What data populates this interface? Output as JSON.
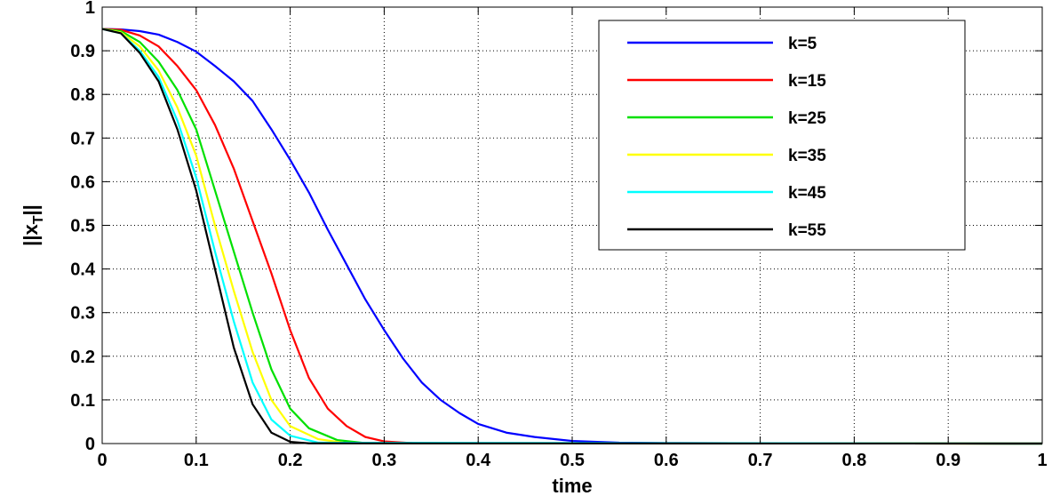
{
  "chart_data": {
    "type": "line",
    "title": "",
    "xlabel": "time",
    "ylabel_main": "||x",
    "ylabel_sub": "T",
    "ylabel_end": "||",
    "xlim": [
      0,
      1
    ],
    "ylim": [
      0,
      1
    ],
    "xticks": [
      "0",
      "0.1",
      "0.2",
      "0.3",
      "0.4",
      "0.5",
      "0.6",
      "0.7",
      "0.8",
      "0.9",
      "1"
    ],
    "yticks": [
      "0",
      "0.1",
      "0.2",
      "0.3",
      "0.4",
      "0.5",
      "0.6",
      "0.7",
      "0.8",
      "0.9",
      "1"
    ],
    "grid": true,
    "legend_position": "top-right",
    "series": [
      {
        "name": "k=5",
        "color": "#0000ff",
        "x": [
          0,
          0.02,
          0.04,
          0.06,
          0.08,
          0.1,
          0.12,
          0.14,
          0.16,
          0.18,
          0.2,
          0.22,
          0.24,
          0.26,
          0.28,
          0.3,
          0.32,
          0.34,
          0.36,
          0.38,
          0.4,
          0.43,
          0.46,
          0.5,
          0.55,
          0.6,
          1.0
        ],
        "y": [
          0.95,
          0.949,
          0.945,
          0.937,
          0.92,
          0.898,
          0.865,
          0.83,
          0.785,
          0.72,
          0.65,
          0.575,
          0.49,
          0.41,
          0.33,
          0.26,
          0.195,
          0.14,
          0.1,
          0.07,
          0.045,
          0.025,
          0.015,
          0.006,
          0.002,
          0.001,
          0
        ]
      },
      {
        "name": "k=15",
        "color": "#ff0000",
        "x": [
          0,
          0.02,
          0.04,
          0.06,
          0.08,
          0.1,
          0.12,
          0.14,
          0.16,
          0.18,
          0.2,
          0.22,
          0.24,
          0.26,
          0.28,
          0.3,
          0.33,
          1.0
        ],
        "y": [
          0.95,
          0.948,
          0.935,
          0.91,
          0.865,
          0.81,
          0.73,
          0.63,
          0.51,
          0.39,
          0.26,
          0.15,
          0.08,
          0.04,
          0.015,
          0.005,
          0.001,
          0
        ]
      },
      {
        "name": "k=25",
        "color": "#00e000",
        "x": [
          0,
          0.02,
          0.04,
          0.06,
          0.08,
          0.1,
          0.12,
          0.14,
          0.16,
          0.18,
          0.2,
          0.22,
          0.25,
          0.28,
          1.0
        ],
        "y": [
          0.95,
          0.945,
          0.92,
          0.875,
          0.81,
          0.72,
          0.58,
          0.44,
          0.3,
          0.17,
          0.08,
          0.035,
          0.008,
          0.001,
          0
        ]
      },
      {
        "name": "k=35",
        "color": "#ffff00",
        "x": [
          0,
          0.02,
          0.04,
          0.06,
          0.08,
          0.1,
          0.12,
          0.14,
          0.16,
          0.18,
          0.2,
          0.23,
          0.26,
          1.0
        ],
        "y": [
          0.95,
          0.942,
          0.91,
          0.855,
          0.77,
          0.66,
          0.5,
          0.35,
          0.21,
          0.1,
          0.04,
          0.01,
          0.001,
          0
        ]
      },
      {
        "name": "k=45",
        "color": "#00ffff",
        "x": [
          0,
          0.02,
          0.04,
          0.06,
          0.08,
          0.1,
          0.12,
          0.14,
          0.16,
          0.18,
          0.2,
          0.23,
          1.0
        ],
        "y": [
          0.95,
          0.94,
          0.9,
          0.84,
          0.74,
          0.61,
          0.44,
          0.28,
          0.14,
          0.055,
          0.018,
          0.002,
          0
        ]
      },
      {
        "name": "k=55",
        "color": "#000000",
        "x": [
          0,
          0.02,
          0.04,
          0.06,
          0.08,
          0.1,
          0.12,
          0.14,
          0.16,
          0.18,
          0.2,
          0.22,
          1.0
        ],
        "y": [
          0.95,
          0.94,
          0.895,
          0.83,
          0.72,
          0.58,
          0.4,
          0.22,
          0.09,
          0.025,
          0.004,
          0.0005,
          0
        ]
      }
    ]
  }
}
